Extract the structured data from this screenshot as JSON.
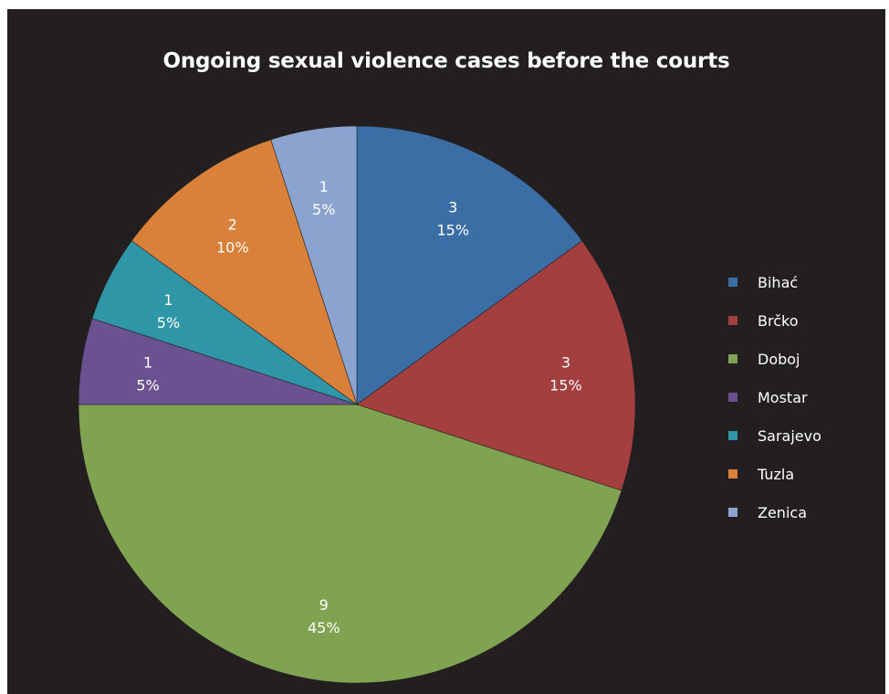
{
  "chart_data": {
    "type": "pie",
    "title": "Ongoing sexual violence cases before the courts",
    "slices": [
      {
        "label": "Bihać",
        "value": 3,
        "percent": "15%",
        "color": "#3b6ea5"
      },
      {
        "label": "Brčko",
        "value": 3,
        "percent": "15%",
        "color": "#a33f3e"
      },
      {
        "label": "Doboj",
        "value": 9,
        "percent": "45%",
        "color": "#7fa350"
      },
      {
        "label": "Mostar",
        "value": 1,
        "percent": "5%",
        "color": "#6a5190"
      },
      {
        "label": "Sarajevo",
        "value": 1,
        "percent": "5%",
        "color": "#2f96a8"
      },
      {
        "label": "Tuzla",
        "value": 2,
        "percent": "10%",
        "color": "#d9803a"
      },
      {
        "label": "Zenica",
        "value": 1,
        "percent": "5%",
        "color": "#8aa4cf"
      }
    ],
    "legend_position": "right",
    "background": "#231f20"
  }
}
